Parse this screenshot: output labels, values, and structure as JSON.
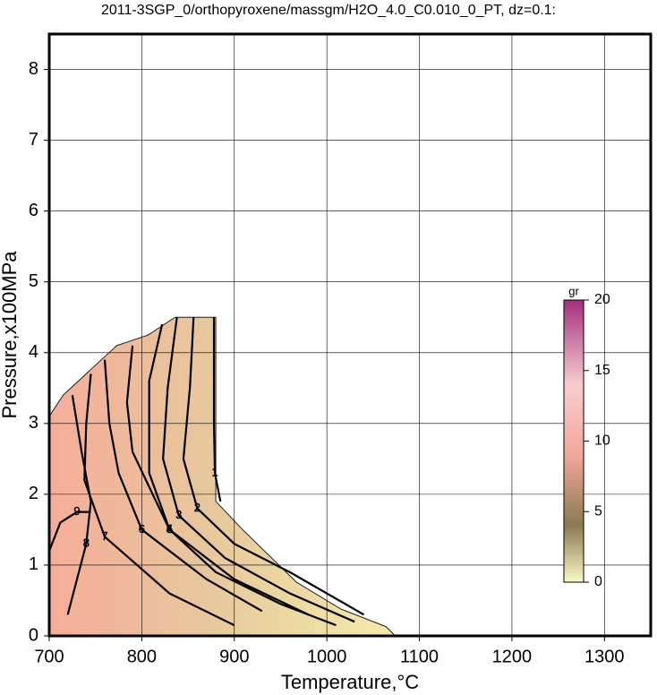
{
  "chart_data": {
    "type": "contour",
    "title": "2011-3SGP_0/orthopyroxene/massgm/H2O_4.0_C0.010_0_PT, dz=0.1:",
    "x_label": "Temperature,°C",
    "y_label": "Pressure,x100MPa",
    "xlim": [
      700,
      1350
    ],
    "ylim": [
      0,
      8.5
    ],
    "xticks": [
      700,
      800,
      900,
      1000,
      1100,
      1200,
      1300
    ],
    "yticks": [
      0,
      1,
      2,
      3,
      4,
      5,
      6,
      7,
      8
    ],
    "grid": true,
    "region": {
      "x": [
        700,
        700,
        715,
        748,
        773,
        807,
        836,
        880,
        880,
        909,
        967,
        1015,
        1064,
        1074
      ],
      "y": [
        0,
        3.1,
        3.4,
        3.8,
        4.1,
        4.25,
        4.5,
        4.5,
        1.9,
        1.5,
        0.76,
        0.38,
        0.13,
        0
      ]
    },
    "contours": [
      {
        "level": 1,
        "x": [
          878,
          878,
          879,
          885
        ],
        "y": [
          4.5,
          3.0,
          2.3,
          1.9
        ]
      },
      {
        "level": 2,
        "x": [
          856,
          852,
          845,
          860,
          900,
          960,
          1040
        ],
        "y": [
          4.5,
          3.5,
          2.5,
          1.8,
          1.3,
          0.9,
          0.3
        ]
      },
      {
        "level": 3,
        "x": [
          838,
          828,
          823,
          840,
          890,
          960,
          1030
        ],
        "y": [
          4.5,
          3.5,
          2.5,
          1.7,
          1.1,
          0.6,
          0.2
        ]
      },
      {
        "level": 4,
        "x": [
          822,
          808,
          808,
          830,
          880,
          950,
          1010
        ],
        "y": [
          4.4,
          3.6,
          2.3,
          1.5,
          0.9,
          0.45,
          0.15
        ]
      },
      {
        "level": 5,
        "x": [
          790,
          784,
          790,
          830,
          900,
          980
        ],
        "y": [
          4.1,
          3.3,
          2.6,
          1.5,
          0.8,
          0.3
        ]
      },
      {
        "level": 6,
        "x": [
          760,
          765,
          775,
          800,
          870,
          930
        ],
        "y": [
          3.9,
          3.0,
          2.3,
          1.5,
          0.8,
          0.35
        ]
      },
      {
        "level": 7,
        "x": [
          745,
          740,
          738,
          760,
          830,
          900
        ],
        "y": [
          3.7,
          3.0,
          2.2,
          1.4,
          0.6,
          0.15
        ]
      },
      {
        "level": 8,
        "x": [
          725,
          735,
          745,
          740,
          730,
          720
        ],
        "y": [
          3.4,
          2.6,
          1.9,
          1.3,
          0.8,
          0.3
        ]
      },
      {
        "level": 9,
        "x": [
          700,
          712,
          730,
          745
        ],
        "y": [
          1.2,
          1.6,
          1.75,
          1.75
        ]
      }
    ],
    "colorbar": {
      "label": "gr",
      "lim": [
        0,
        20
      ],
      "ticks": [
        0,
        5,
        10,
        15,
        20
      ]
    }
  }
}
